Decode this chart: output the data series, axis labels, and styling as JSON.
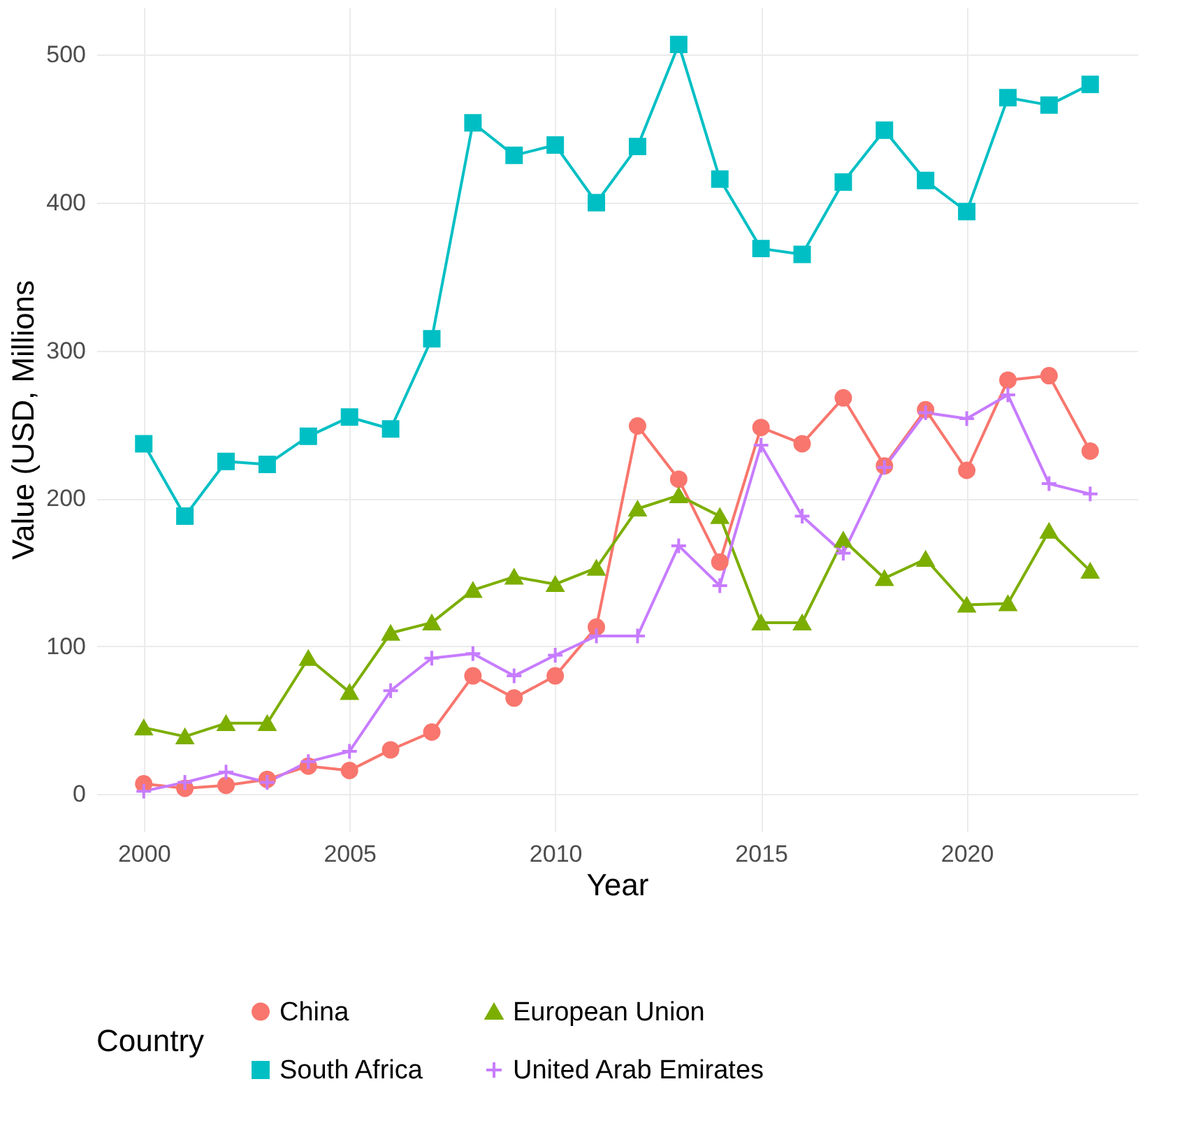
{
  "chart_data": {
    "type": "line",
    "xlabel": "Year",
    "ylabel": "Value (USD, Millions",
    "legend_title": "Country",
    "legend": "bottom",
    "grid": true,
    "x": [
      2000,
      2001,
      2002,
      2003,
      2004,
      2005,
      2006,
      2007,
      2008,
      2009,
      2010,
      2011,
      2012,
      2013,
      2014,
      2015,
      2016,
      2017,
      2018,
      2019,
      2020,
      2021,
      2022,
      2023
    ],
    "xlim": [
      1998.85,
      2024.15
    ],
    "xticks": [
      2000,
      2005,
      2010,
      2015,
      2020
    ],
    "ylim": [
      -25.35,
      532.35
    ],
    "yticks": [
      0,
      100,
      200,
      300,
      400,
      500
    ],
    "series": [
      {
        "name": "China",
        "color": "#f8766d",
        "marker": "circle",
        "values": [
          7,
          4,
          6,
          10,
          19,
          16,
          30,
          42,
          80,
          65,
          80,
          113,
          249,
          213,
          157,
          248,
          237,
          268,
          222,
          260,
          219,
          280,
          283,
          232
        ]
      },
      {
        "name": "European Union",
        "color": "#7cae00",
        "marker": "triangle",
        "values": [
          45,
          39,
          48,
          48,
          92,
          69,
          109,
          116,
          138,
          147,
          142,
          153,
          193,
          202,
          188,
          116,
          116,
          172,
          146,
          159,
          128,
          129,
          178,
          151
        ]
      },
      {
        "name": "South Africa",
        "color": "#00bfc4",
        "marker": "square",
        "values": [
          237,
          188,
          225,
          223,
          242,
          255,
          247,
          308,
          454,
          432,
          439,
          400,
          438,
          507,
          416,
          369,
          365,
          414,
          449,
          415,
          394,
          471,
          466,
          480
        ]
      },
      {
        "name": "United Arab Emirates",
        "color": "#c77cff",
        "marker": "cross",
        "values": [
          2,
          8,
          15,
          8,
          22,
          29,
          70,
          92,
          95,
          80,
          94,
          107,
          107,
          168,
          141,
          236,
          188,
          163,
          221,
          258,
          254,
          270,
          210,
          203
        ]
      }
    ]
  }
}
